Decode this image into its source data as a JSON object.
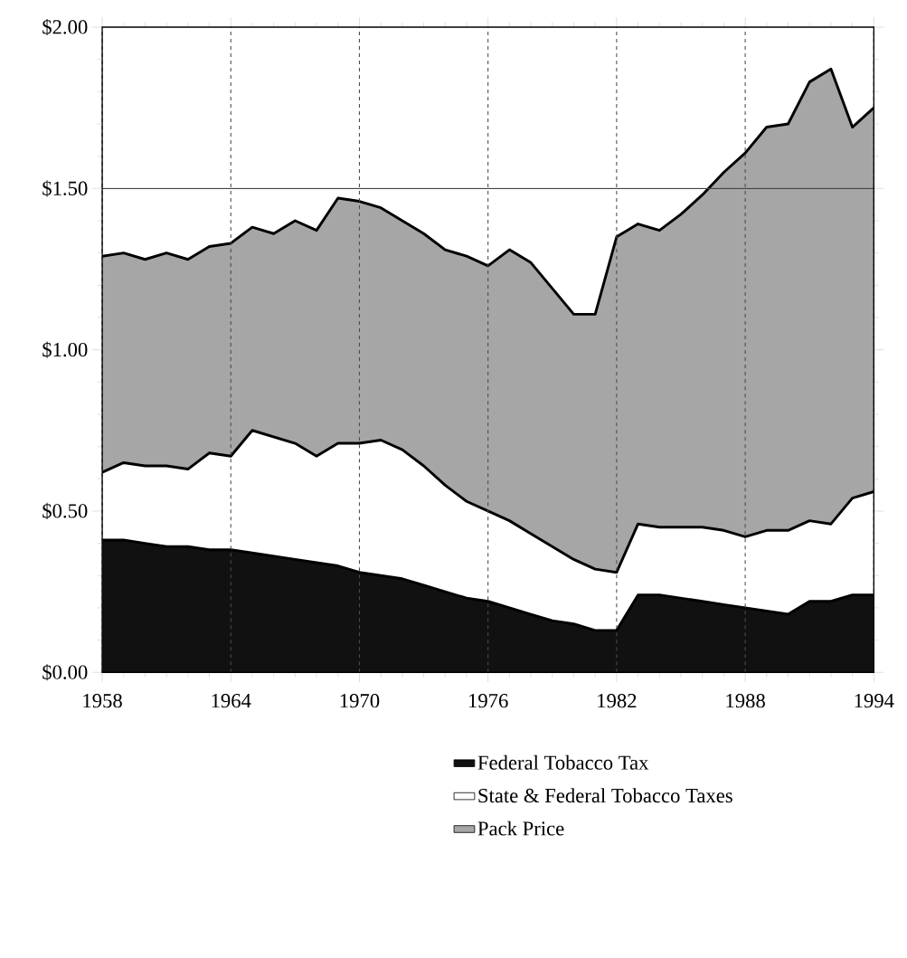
{
  "chart_data": {
    "type": "area",
    "x": [
      1958,
      1959,
      1960,
      1961,
      1962,
      1963,
      1964,
      1965,
      1966,
      1967,
      1968,
      1969,
      1970,
      1971,
      1972,
      1973,
      1974,
      1975,
      1976,
      1977,
      1978,
      1979,
      1980,
      1981,
      1982,
      1983,
      1984,
      1985,
      1986,
      1987,
      1988,
      1989,
      1990,
      1991,
      1992,
      1993,
      1994
    ],
    "series": [
      {
        "name": "Pack Price",
        "color": "#a6a6a6",
        "values": [
          1.29,
          1.3,
          1.28,
          1.3,
          1.28,
          1.32,
          1.33,
          1.38,
          1.36,
          1.4,
          1.37,
          1.47,
          1.46,
          1.44,
          1.4,
          1.36,
          1.31,
          1.29,
          1.26,
          1.31,
          1.27,
          1.19,
          1.11,
          1.11,
          1.35,
          1.39,
          1.37,
          1.42,
          1.48,
          1.55,
          1.61,
          1.69,
          1.7,
          1.83,
          1.87,
          1.69,
          1.75
        ]
      },
      {
        "name": "State & Federal Tobacco Taxes",
        "color": "#ffffff",
        "values": [
          0.62,
          0.65,
          0.64,
          0.64,
          0.63,
          0.68,
          0.67,
          0.75,
          0.73,
          0.71,
          0.67,
          0.71,
          0.71,
          0.72,
          0.69,
          0.64,
          0.58,
          0.53,
          0.5,
          0.47,
          0.43,
          0.39,
          0.35,
          0.32,
          0.31,
          0.46,
          0.45,
          0.45,
          0.45,
          0.44,
          0.42,
          0.44,
          0.44,
          0.47,
          0.46,
          0.54,
          0.56
        ]
      },
      {
        "name": "Federal Tobacco Tax",
        "color": "#111111",
        "values": [
          0.41,
          0.41,
          0.4,
          0.39,
          0.39,
          0.38,
          0.38,
          0.37,
          0.36,
          0.35,
          0.34,
          0.33,
          0.31,
          0.3,
          0.29,
          0.27,
          0.25,
          0.23,
          0.22,
          0.2,
          0.18,
          0.16,
          0.15,
          0.13,
          0.13,
          0.24,
          0.24,
          0.23,
          0.22,
          0.21,
          0.2,
          0.19,
          0.18,
          0.22,
          0.22,
          0.24,
          0.24
        ]
      }
    ],
    "xlim": [
      1958,
      1994
    ],
    "xticks": [
      1958,
      1964,
      1970,
      1976,
      1982,
      1988,
      1994
    ],
    "ylim": [
      0,
      2
    ],
    "yticks": [
      {
        "value": 0,
        "label": "$0.00"
      },
      {
        "value": 0.5,
        "label": "$0.50"
      },
      {
        "value": 1,
        "label": "$1.00"
      },
      {
        "value": 1.5,
        "label": "$1.50"
      },
      {
        "value": 2,
        "label": "$2.00"
      }
    ],
    "grid": "x",
    "ref_lines": [
      {
        "axis": "y",
        "value": 1.5,
        "color": "#444444",
        "line_style": "solid"
      }
    ],
    "legend": "bottom"
  }
}
